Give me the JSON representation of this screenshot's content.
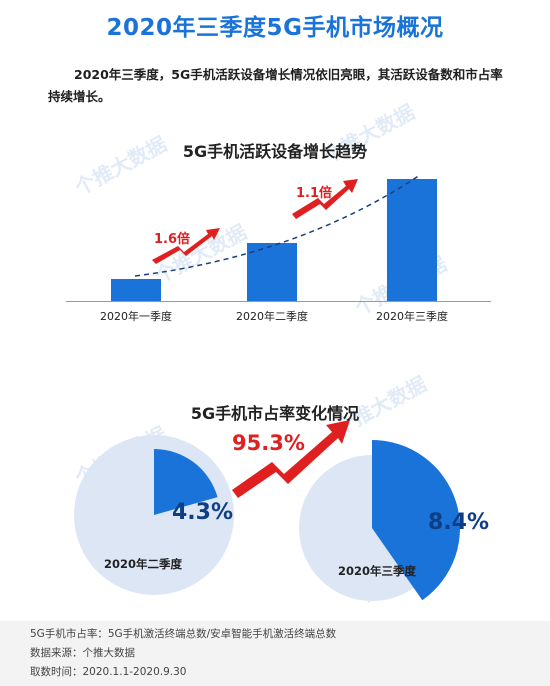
{
  "title": "2020年三季度5G手机市场概况",
  "intro": "2020年三季度，5G手机活跃设备增长情况依旧亮眼，其活跃设备数和市占率持续增长。",
  "colors": {
    "accent": "#1a73d9",
    "growth": "#e02020",
    "pie_bg": "#dde6f5",
    "dark": "#0e3e86"
  },
  "watermark": "个推大数据",
  "chart_data": [
    {
      "type": "bar",
      "title": "5G手机活跃设备增长趋势",
      "categories": [
        "2020年一季度",
        "2020年二季度",
        "2020年三季度"
      ],
      "values": [
        1.0,
        2.6,
        5.5
      ],
      "growth_labels": [
        "1.6倍",
        "1.1倍"
      ],
      "trend_line": "dashed",
      "grid": false
    },
    {
      "type": "pie",
      "title": "5G手机市占率变化情况",
      "series": [
        {
          "name": "2020年二季度",
          "value": 4.3,
          "label": "4.3%"
        },
        {
          "name": "2020年三季度",
          "value": 8.4,
          "label": "8.4%"
        }
      ],
      "growth_label": "95.3%"
    }
  ],
  "footer": {
    "definition": "5G手机市占率：5G手机激活终端总数/安卓智能手机激活终端总数",
    "source": "数据来源：个推大数据",
    "period": "取数时间：2020.1.1-2020.9.30"
  }
}
